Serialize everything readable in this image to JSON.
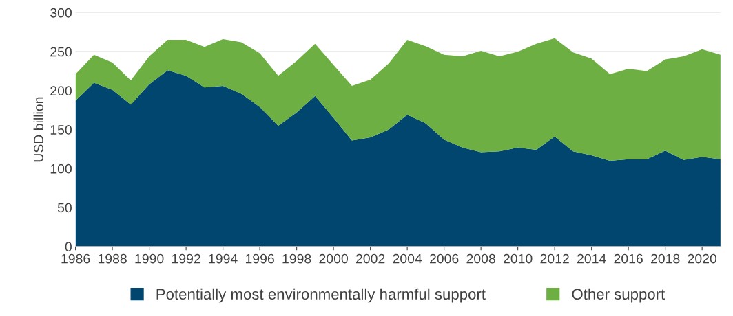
{
  "chart_data": {
    "type": "area",
    "stacked": true,
    "ylabel": "USD billion",
    "x": [
      1986,
      1987,
      1988,
      1989,
      1990,
      1991,
      1992,
      1993,
      1994,
      1995,
      1996,
      1997,
      1998,
      1999,
      2000,
      2001,
      2002,
      2003,
      2004,
      2005,
      2006,
      2007,
      2008,
      2009,
      2010,
      2011,
      2012,
      2013,
      2014,
      2015,
      2016,
      2017,
      2018,
      2019,
      2020,
      2021
    ],
    "series": [
      {
        "name": "Potentially most environmentally harmful support",
        "color": "#00466f",
        "values": [
          187,
          210,
          201,
          182,
          208,
          226,
          219,
          204,
          206,
          196,
          179,
          155,
          172,
          193,
          165,
          136,
          140,
          150,
          169,
          158,
          137,
          127,
          121,
          122,
          127,
          124,
          141,
          122,
          117,
          110,
          112,
          112,
          123,
          111,
          115,
          112
        ]
      },
      {
        "name": "Other support",
        "color": "#6daf42",
        "values": [
          34,
          36,
          35,
          31,
          36,
          39,
          46,
          52,
          60,
          66,
          69,
          64,
          66,
          67,
          68,
          70,
          74,
          85,
          96,
          99,
          109,
          117,
          130,
          122,
          123,
          136,
          126,
          127,
          124,
          111,
          116,
          113,
          117,
          133,
          138,
          134
        ]
      }
    ],
    "xlim": [
      1986,
      2021
    ],
    "xticks": [
      1986,
      1988,
      1990,
      1992,
      1994,
      1996,
      1998,
      2000,
      2002,
      2004,
      2006,
      2008,
      2010,
      2012,
      2014,
      2016,
      2018,
      2020
    ],
    "ylim": [
      0,
      300
    ],
    "yticks": [
      0,
      50,
      100,
      150,
      200,
      250,
      300
    ],
    "grid": "y",
    "legend": "bottom"
  }
}
